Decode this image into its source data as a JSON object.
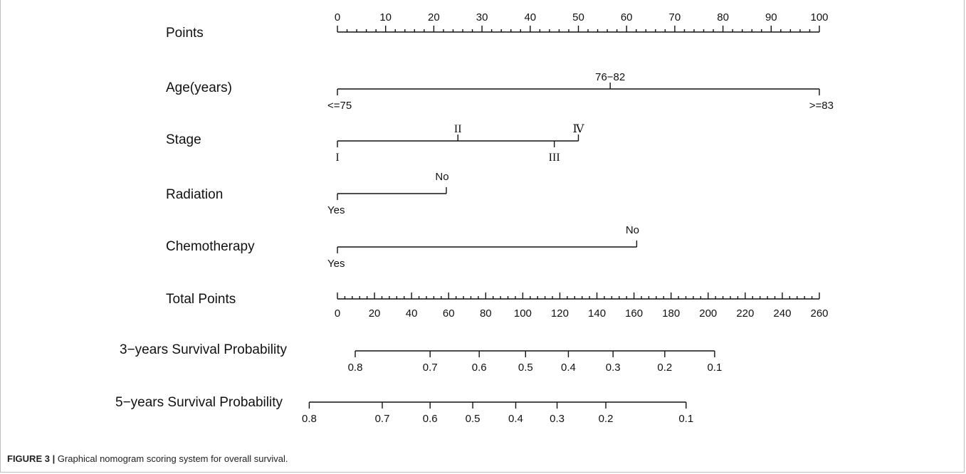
{
  "caption": {
    "label": "FIGURE 3 |",
    "text": " Graphical nomogram scoring system for overall survival."
  },
  "chart_data": {
    "type": "nomogram",
    "scales": [
      {
        "name": "Points",
        "kind": "axis",
        "min": 0,
        "max": 100,
        "major_ticks": [
          0,
          10,
          20,
          30,
          40,
          50,
          60,
          70,
          80,
          90,
          100
        ],
        "minor_step": 2
      },
      {
        "name": "Age(years)",
        "kind": "factor",
        "levels": [
          {
            "label": "<=75",
            "points": 0
          },
          {
            "label": "76−82",
            "points": 56.6
          },
          {
            "label": ">=83",
            "points": 100
          }
        ]
      },
      {
        "name": "Stage",
        "kind": "factor",
        "levels": [
          {
            "label": "I",
            "points": 0
          },
          {
            "label": "II",
            "points": 25
          },
          {
            "label": "III",
            "points": 45
          },
          {
            "label": "Ⅳ",
            "points": 50
          }
        ]
      },
      {
        "name": "Radiation",
        "kind": "factor",
        "levels": [
          {
            "label": "Yes",
            "points": 0
          },
          {
            "label": "No",
            "points": 22.6
          }
        ]
      },
      {
        "name": "Chemotherapy",
        "kind": "factor",
        "levels": [
          {
            "label": "Yes",
            "points": 0
          },
          {
            "label": "No",
            "points": 62.1
          }
        ]
      },
      {
        "name": "Total Points",
        "kind": "axis",
        "min": 0,
        "max": 260,
        "major_ticks": [
          0,
          20,
          40,
          60,
          80,
          100,
          120,
          140,
          160,
          180,
          200,
          220,
          240,
          260
        ],
        "minor_step": 4
      },
      {
        "name": "3−years Survival Probability",
        "kind": "probability",
        "ticks": [
          {
            "label": "0.8",
            "total_points": 9.6
          },
          {
            "label": "0.7",
            "total_points": 50
          },
          {
            "label": "0.6",
            "total_points": 76.5
          },
          {
            "label": "0.5",
            "total_points": 101.5
          },
          {
            "label": "0.4",
            "total_points": 124.6
          },
          {
            "label": "0.3",
            "total_points": 148.7
          },
          {
            "label": "0.2",
            "total_points": 176.6
          },
          {
            "label": "0.1",
            "total_points": 203.5
          }
        ]
      },
      {
        "name": "5−years Survival Probability",
        "kind": "probability",
        "ticks": [
          {
            "label": "0.8",
            "total_points": -15.2
          },
          {
            "label": "0.7",
            "total_points": 24.2
          },
          {
            "label": "0.6",
            "total_points": 50
          },
          {
            "label": "0.5",
            "total_points": 73
          },
          {
            "label": "0.4",
            "total_points": 96.2
          },
          {
            "label": "0.3",
            "total_points": 118.5
          },
          {
            "label": "0.2",
            "total_points": 144.8
          },
          {
            "label": "0.1",
            "total_points": 188.1
          }
        ]
      }
    ]
  }
}
